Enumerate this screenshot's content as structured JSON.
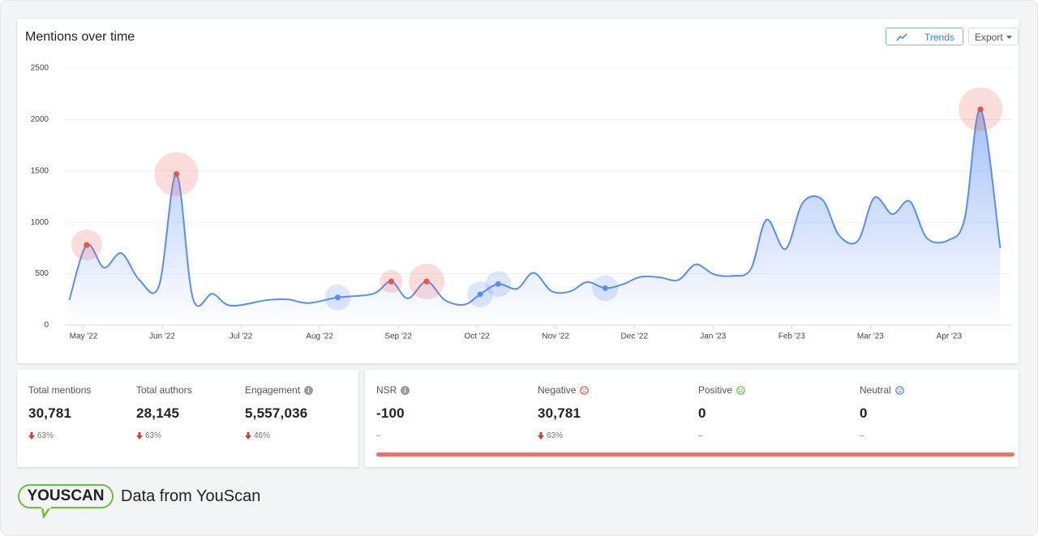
{
  "chart_data": {
    "type": "line",
    "title": "Mentions over time",
    "x": [
      -0.18,
      0.04,
      0.26,
      0.48,
      0.71,
      0.96,
      1.18,
      1.39,
      1.64,
      1.87,
      2.34,
      2.6,
      2.86,
      3.23,
      3.68,
      3.91,
      4.12,
      4.36,
      4.59,
      4.84,
      5.04,
      5.27,
      5.51,
      5.72,
      5.95,
      6.19,
      6.4,
      6.63,
      6.86,
      7.08,
      7.32,
      7.56,
      7.78,
      8.01,
      8.25,
      8.48,
      8.68,
      8.92,
      9.14,
      9.39,
      9.6,
      9.84,
      10.05,
      10.28,
      10.5,
      10.72,
      11.0,
      11.2,
      11.4,
      11.65
    ],
    "series": [
      {
        "color": "#5b8ef0",
        "values": [
          245,
          780,
          560,
          700,
          440,
          385,
          1470,
          260,
          305,
          190,
          245,
          250,
          215,
          270,
          305,
          425,
          260,
          425,
          245,
          200,
          300,
          400,
          355,
          510,
          330,
          330,
          420,
          360,
          400,
          470,
          465,
          440,
          590,
          495,
          480,
          545,
          1025,
          740,
          1190,
          1220,
          875,
          820,
          1240,
          1080,
          1205,
          845,
          830,
          1045,
          2100,
          750
        ]
      }
    ],
    "highlights": [
      {
        "index": 1,
        "color": "#e5534b"
      },
      {
        "index": 6,
        "color": "#e5534b"
      },
      {
        "index": 15,
        "color": "#e5534b"
      },
      {
        "index": 17,
        "color": "#e5534b"
      },
      {
        "index": 48,
        "color": "#e5534b"
      },
      {
        "index": 13,
        "color": "#5b8ef0"
      },
      {
        "index": 20,
        "color": "#5b8ef0"
      },
      {
        "index": 21,
        "color": "#5b8ef0"
      },
      {
        "index": 27,
        "color": "#5b8ef0"
      }
    ],
    "xlim": [
      -0.237,
      11.8
    ],
    "xticks": [
      {
        "value": 0,
        "label": "May '22"
      },
      {
        "value": 1,
        "label": "Jun '22"
      },
      {
        "value": 2,
        "label": "Jul '22"
      },
      {
        "value": 3,
        "label": "Aug '22"
      },
      {
        "value": 4,
        "label": "Sep '22"
      },
      {
        "value": 5,
        "label": "Oct '22"
      },
      {
        "value": 6,
        "label": "Nov '22"
      },
      {
        "value": 7,
        "label": "Dec '22"
      },
      {
        "value": 8,
        "label": "Jan '23"
      },
      {
        "value": 9,
        "label": "Feb '23"
      },
      {
        "value": 10,
        "label": "Mar '23"
      },
      {
        "value": 11,
        "label": "Apr '23"
      }
    ],
    "ylim": [
      0,
      2500
    ],
    "yticks": [
      0,
      500,
      1000,
      1500,
      2000,
      2500
    ],
    "grid": true
  },
  "buttons": {
    "trends": "Trends",
    "export": "Export"
  },
  "stats": [
    {
      "label": "Total mentions",
      "value": "30,781",
      "change": "63%"
    },
    {
      "label": "Total authors",
      "value": "28,145",
      "change": "63%"
    },
    {
      "label": "Engagement",
      "value": "5,557,036",
      "change": "46%"
    }
  ],
  "sentiment": [
    {
      "label": "NSR",
      "value": "-100",
      "change": "–"
    },
    {
      "label": "Negative",
      "value": "30,781",
      "change": "63%"
    },
    {
      "label": "Positive",
      "value": "0",
      "change": "–"
    },
    {
      "label": "Neutral",
      "value": "0",
      "change": "–"
    }
  ],
  "footer": {
    "logo": "YOUSCAN",
    "text": "Data from YouScan"
  }
}
